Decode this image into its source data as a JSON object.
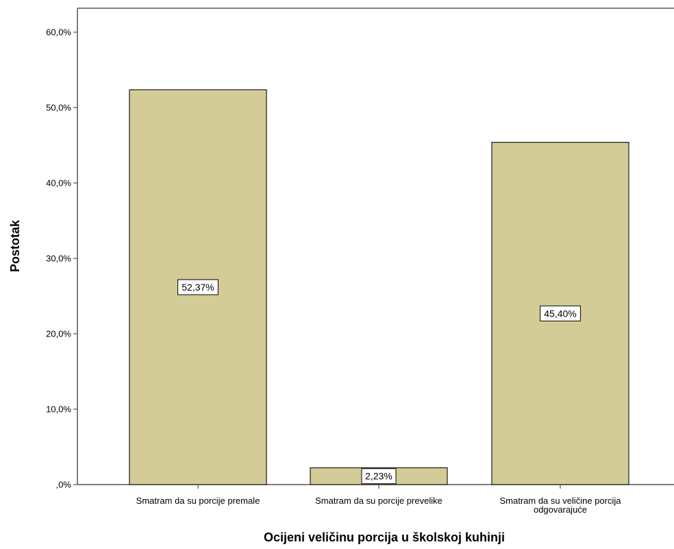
{
  "chart_data": {
    "type": "bar",
    "categories": [
      [
        "Smatram da su porcije premale"
      ],
      [
        "Smatram da su porcije prevelike"
      ],
      [
        "Smatram da su veličine porcija",
        "odgovarajuće"
      ]
    ],
    "values": [
      52.37,
      2.23,
      45.4
    ],
    "data_labels": [
      "52,37%",
      "2,23%",
      "45,40%"
    ],
    "xlabel": "Ocijeni veličinu porcija u školskoj kuhinji",
    "ylabel": "Postotak",
    "ylim": [
      0,
      60
    ],
    "yticks": [
      0,
      10,
      20,
      30,
      40,
      50,
      60
    ],
    "ytick_labels": [
      ",0%",
      "10,0%",
      "20,0%",
      "30,0%",
      "40,0%",
      "50,0%",
      "60,0%"
    ],
    "grid": false,
    "colors": {
      "bar_fill": "#d4cc96",
      "bar_stroke": "#1a1a1a",
      "axis": "#555555"
    }
  }
}
